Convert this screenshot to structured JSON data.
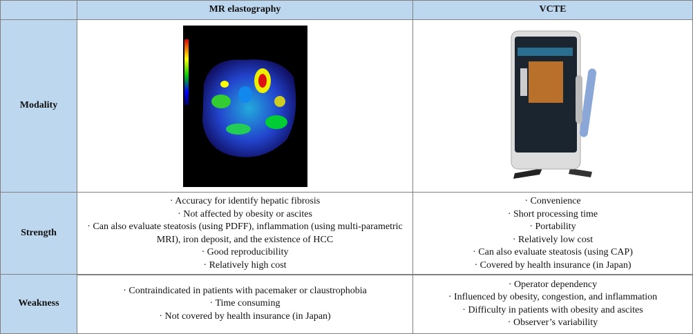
{
  "table": {
    "header": [
      "MR elastography",
      "VCTE"
    ],
    "rows": [
      {
        "label": "Modality",
        "cells": [
          [],
          []
        ]
      },
      {
        "label": "Strength",
        "cells": [
          [
            "· Accuracy for identify hepatic fibrosis",
            "· Not affected by obesity or ascites",
            "· Can also evaluate steatosis (using PDFF), inflammation (using multi-parametric MRI), iron deposit, and the existence of HCC",
            "· Good reproducibility",
            "· Relatively high cost"
          ],
          [
            "· Convenience",
            "· Short processing time",
            "· Portability",
            "· Relatively low cost",
            "· Can also evaluate steatosis (using CAP)",
            "· Covered by health insurance (in Japan)"
          ]
        ]
      },
      {
        "label": "Weakness",
        "cells": [
          [
            "· Contraindicated in patients with pacemaker or claustrophobia",
            "· Time consuming",
            "· Not covered by health insurance (in Japan)"
          ],
          [
            "· Operator dependency",
            "· Influenced by obesity, congestion, and inflammation",
            "· Difficulty in patients with obesity and ascites",
            "· Observer’s variability"
          ]
        ]
      }
    ]
  }
}
